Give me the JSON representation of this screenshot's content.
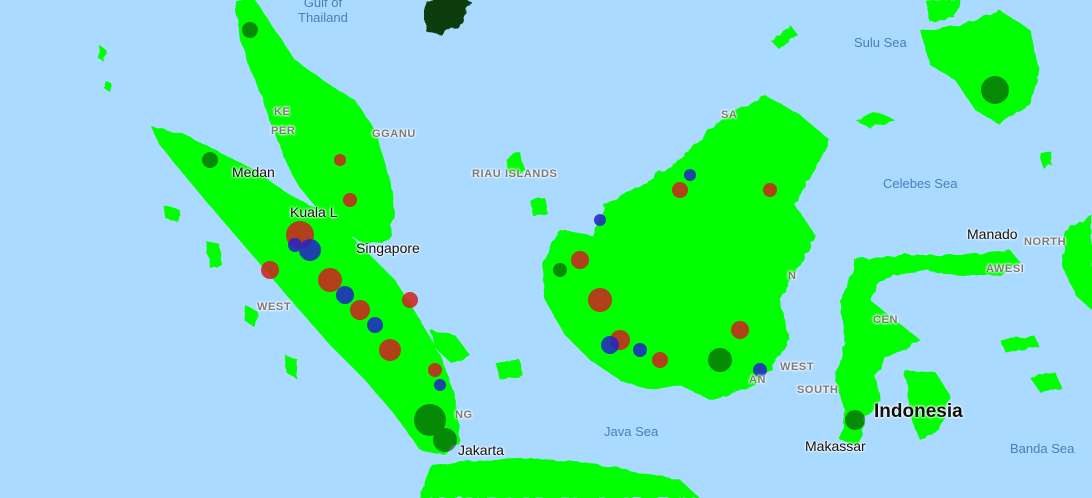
{
  "map": {
    "colors": {
      "water": "#aadaff",
      "forest": "#00ff00",
      "dark_forest": "#0b3d0b",
      "loss_red": "#d21f1f",
      "loss_blue": "#2323c8"
    },
    "labels": {
      "gulf_of_thailand": "Gulf of\nThailand",
      "sulu_sea": "Sulu Sea",
      "celebes_sea": "Celebes Sea",
      "java_sea": "Java Sea",
      "banda_sea": "Banda Sea",
      "medan": "Medan",
      "kuala_lumpur": "Kuala L",
      "singapore": "Singapore",
      "jakarta": "Jakarta",
      "manado": "Manado",
      "makassar": "Makassar",
      "indonesia": "Indonesia",
      "riau_islands": "RIAU ISLANDS",
      "terengganu": "GGANU",
      "perak": "PER",
      "kedah": "KE",
      "west_sumatra": "WEST",
      "sabah": "SA",
      "north_sulawesi": "NORTH",
      "sulawesi": "AWESI",
      "west_sulawesi": "WEST",
      "south_sulawesi": "SOUTH",
      "central_sulawesi": "CEN",
      "kalimantan_n": "N",
      "kalimantan_an": "AN",
      "lampung": "NG"
    }
  }
}
